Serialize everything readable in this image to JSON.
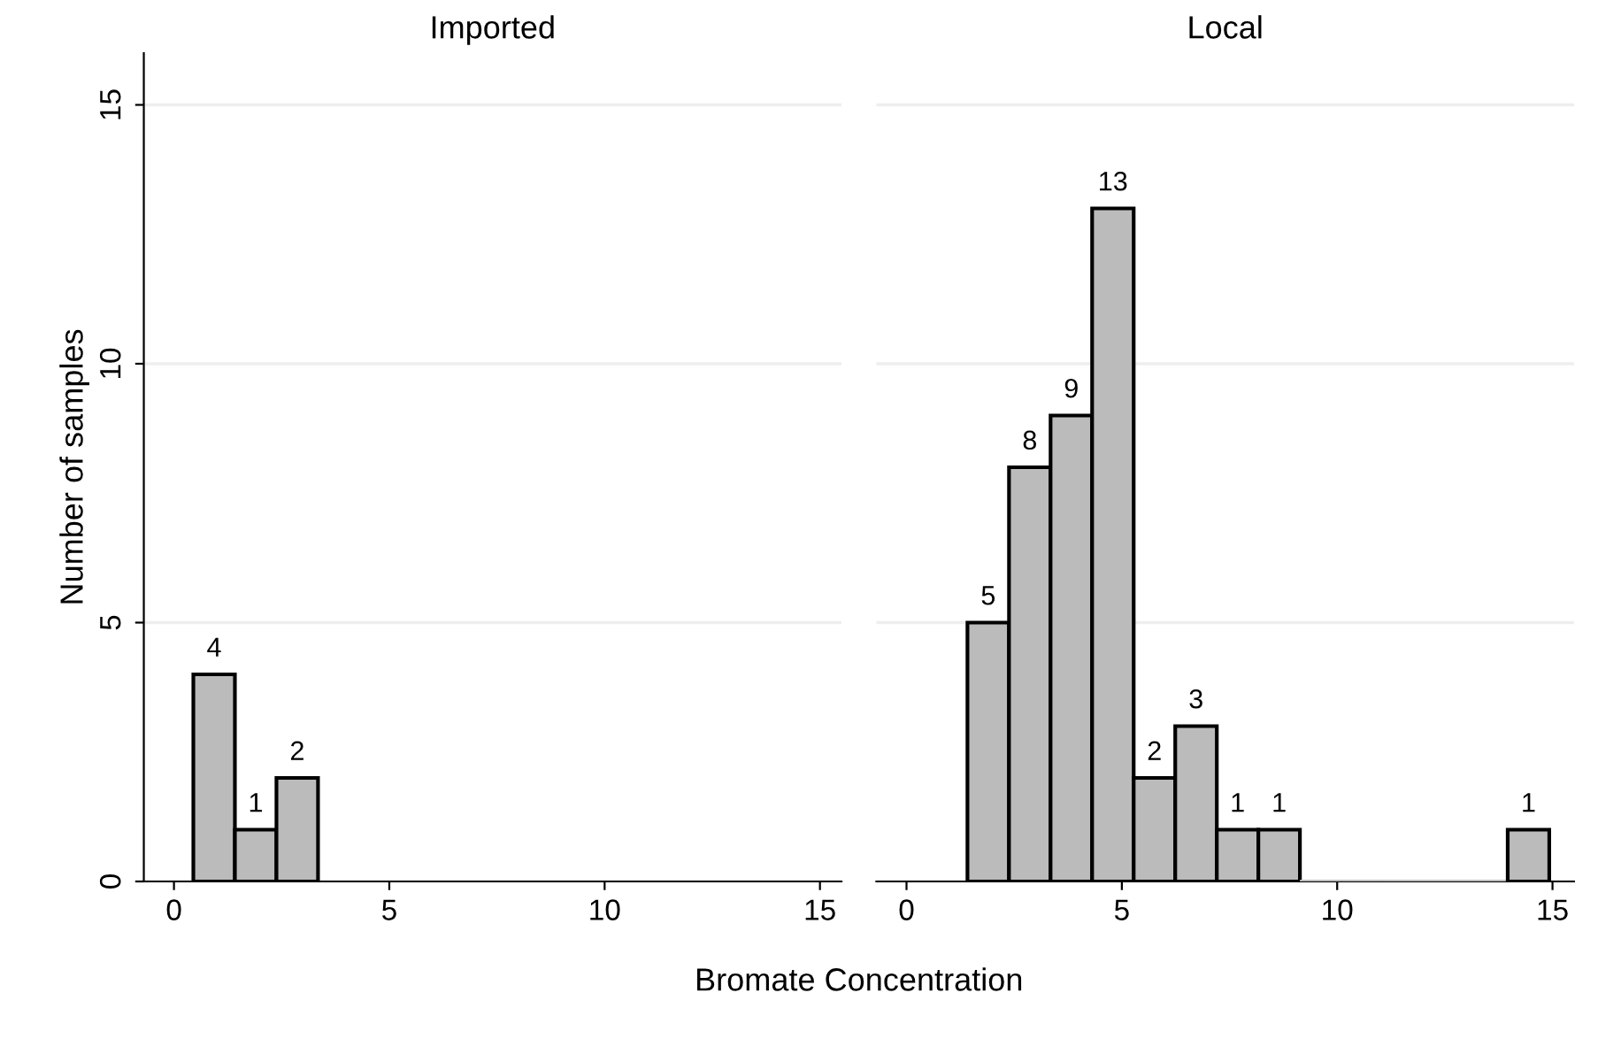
{
  "chart_data": [
    {
      "type": "histogram",
      "title": "Imported",
      "ylabel": "Number of samples",
      "color": "#bbbbbb",
      "bins": [
        0.45,
        1.415,
        2.38,
        3.345
      ],
      "values": [
        4,
        1,
        2
      ],
      "value_labels": [
        "4",
        "1",
        "2"
      ],
      "xlim": [
        -0.7,
        15.5
      ],
      "xticks": [
        0,
        5,
        10,
        15
      ],
      "ylim": [
        0,
        16
      ],
      "yticks": [
        0,
        5,
        10,
        15
      ],
      "grid": "y"
    },
    {
      "type": "histogram",
      "title": "Local",
      "xlabel": "Bromate Concentration",
      "color": "#bbbbbb",
      "bins": [
        1.415,
        2.38,
        3.345,
        4.31,
        5.275,
        6.24,
        7.205,
        8.17,
        9.135,
        10.1,
        11.065,
        12.03,
        12.995,
        13.96,
        14.925
      ],
      "values": [
        5,
        8,
        9,
        13,
        2,
        3,
        1,
        1,
        0,
        0,
        0,
        0,
        0,
        1
      ],
      "value_labels": [
        "5",
        "8",
        "9",
        "13",
        "2",
        "3",
        "1",
        "1",
        null,
        null,
        null,
        null,
        null,
        "1"
      ],
      "xlim": [
        -0.7,
        15.5
      ],
      "xticks": [
        0,
        5,
        10,
        15
      ],
      "yticks": [
        0,
        5,
        10,
        15
      ],
      "grid": "y",
      "tick_labels": "x"
    }
  ]
}
